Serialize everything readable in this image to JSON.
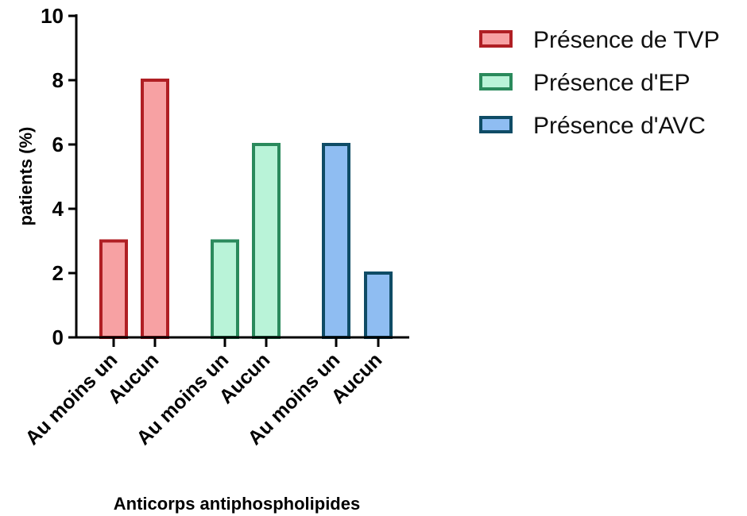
{
  "chart_data": {
    "type": "bar",
    "xlabel": "Anticorps antiphospholipides",
    "ylabel": "patients (%)",
    "ylim": [
      0,
      10
    ],
    "yticks": [
      0,
      2,
      4,
      6,
      8,
      10
    ],
    "legend_position": "top-right",
    "grid": false,
    "series": [
      {
        "name": "Présence de TVP",
        "fill": "#f7a1a3",
        "stroke": "#b01f24",
        "categories": [
          "Au moins un",
          "Aucun"
        ],
        "values": [
          3,
          8
        ]
      },
      {
        "name": "Présence d'EP",
        "fill": "#b9f3d8",
        "stroke": "#2a8a5c",
        "categories": [
          "Au moins un",
          "Aucun"
        ],
        "values": [
          3,
          6
        ]
      },
      {
        "name": "Présence d'AVC",
        "fill": "#8fbdf2",
        "stroke": "#0f4c66",
        "categories": [
          "Au moins un",
          "Aucun"
        ],
        "values": [
          6,
          2
        ]
      }
    ]
  }
}
